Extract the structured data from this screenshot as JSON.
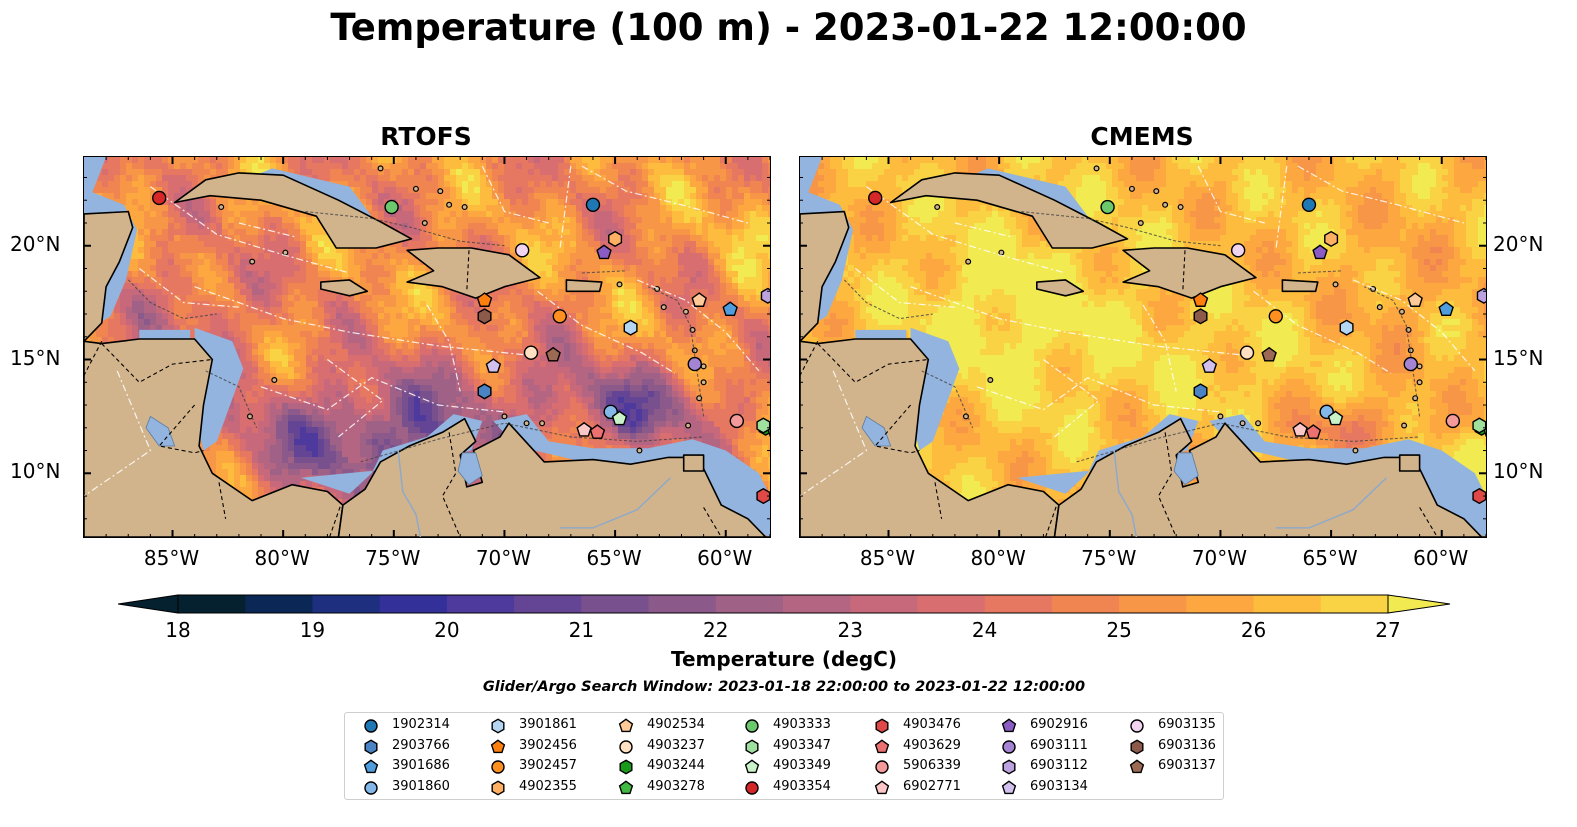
{
  "figure": {
    "title": "Temperature (100 m) - 2023-01-22 12:00:00",
    "colorbar_label": "Temperature (degC)",
    "search_window": "Glider/Argo Search Window: 2023-01-18 22:00:00 to 2023-01-22 12:00:00",
    "colorbar_ticks": [
      "18",
      "19",
      "20",
      "21",
      "22",
      "23",
      "24",
      "25",
      "26",
      "27"
    ],
    "colormap": [
      "#05202f",
      "#0b2756",
      "#1e2f7f",
      "#34309a",
      "#4e3a9c",
      "#644595",
      "#78508e",
      "#8c5a8a",
      "#a06187",
      "#b46582",
      "#c7697a",
      "#d86e6f",
      "#e67862",
      "#f08552",
      "#f79646",
      "#fca73f",
      "#fdbc3e",
      "#f9d344",
      "#f1ea51"
    ]
  },
  "panels": [
    {
      "id": "rtofs",
      "title": "RTOFS",
      "y_axis_side": "left",
      "lon_ticks": [
        "85°W",
        "80°W",
        "75°W",
        "70°W",
        "65°W",
        "60°W"
      ],
      "lat_ticks": [
        "20°N",
        "15°N",
        "10°N"
      ]
    },
    {
      "id": "cmems",
      "title": "CMEMS",
      "y_axis_side": "right",
      "lon_ticks": [
        "85°W",
        "80°W",
        "75°W",
        "70°W",
        "65°W",
        "60°W"
      ],
      "lat_ticks": [
        "20°N",
        "15°N",
        "10°N"
      ]
    }
  ],
  "colors": {
    "land": "#d2b48c",
    "shelf": "#93b4de",
    "deep_land": "#062231",
    "coast": "#000000"
  },
  "platforms": [
    {
      "id": "1902314",
      "marker": "circle",
      "color": "#1f77b4",
      "lon": -66.0,
      "lat": 21.8
    },
    {
      "id": "2903766",
      "marker": "hexagon",
      "color": "#4a84c4",
      "lon": -70.9,
      "lat": 13.6
    },
    {
      "id": "3901686",
      "marker": "pentagon",
      "color": "#4f9ddc",
      "lon": -59.8,
      "lat": 17.2
    },
    {
      "id": "3901860",
      "marker": "circle",
      "color": "#84b8e8",
      "lon": -65.2,
      "lat": 12.7
    },
    {
      "id": "3901861",
      "marker": "hexagon",
      "color": "#b4d6f3",
      "lon": -64.3,
      "lat": 16.4
    },
    {
      "id": "3902456",
      "marker": "pentagon",
      "color": "#ff7f0e",
      "lon": -70.9,
      "lat": 17.6
    },
    {
      "id": "3902457",
      "marker": "circle",
      "color": "#ff9020",
      "lon": -67.5,
      "lat": 16.9
    },
    {
      "id": "4902355",
      "marker": "hexagon",
      "color": "#ffb063",
      "lon": -65.0,
      "lat": 20.3
    },
    {
      "id": "4902534",
      "marker": "pentagon",
      "color": "#ffc998",
      "lon": -61.2,
      "lat": 17.6
    },
    {
      "id": "4903237",
      "marker": "circle",
      "color": "#ffe0c2",
      "lon": -68.8,
      "lat": 15.3
    },
    {
      "id": "4903244",
      "marker": "hexagon",
      "color": "#1a9a1a",
      "lon": -58.2,
      "lat": 12.0
    },
    {
      "id": "4903278",
      "marker": "pentagon",
      "color": "#41b841",
      "lon": -57.8,
      "lat": 11.9
    },
    {
      "id": "4903333",
      "marker": "circle",
      "color": "#6cc86c",
      "lon": -75.1,
      "lat": 21.7
    },
    {
      "id": "4903347",
      "marker": "hexagon",
      "color": "#9fe09f",
      "lon": -58.3,
      "lat": 12.1
    },
    {
      "id": "4903349",
      "marker": "pentagon",
      "color": "#c8f2c8",
      "lon": -64.8,
      "lat": 12.4
    },
    {
      "id": "4903354",
      "marker": "circle",
      "color": "#d62728",
      "lon": -85.6,
      "lat": 22.1
    },
    {
      "id": "4903476",
      "marker": "hexagon",
      "color": "#e04848",
      "lon": -58.3,
      "lat": 9.0
    },
    {
      "id": "4903629",
      "marker": "pentagon",
      "color": "#ec7070",
      "lon": -65.8,
      "lat": 11.8
    },
    {
      "id": "5906339",
      "marker": "circle",
      "color": "#f59a9a",
      "lon": -59.5,
      "lat": 12.3
    },
    {
      "id": "6902771",
      "marker": "pentagon",
      "color": "#fcc7c7",
      "lon": -66.4,
      "lat": 11.9
    },
    {
      "id": "6902916",
      "marker": "pentagon",
      "color": "#8a5cc4",
      "lon": -65.5,
      "lat": 19.7
    },
    {
      "id": "6903111",
      "marker": "circle",
      "color": "#a584d4",
      "lon": -61.4,
      "lat": 14.8
    },
    {
      "id": "6903112",
      "marker": "hexagon",
      "color": "#bda2e0",
      "lon": -58.1,
      "lat": 17.8
    },
    {
      "id": "6903134",
      "marker": "pentagon",
      "color": "#d2c0ee",
      "lon": -70.5,
      "lat": 14.7
    },
    {
      "id": "6903135",
      "marker": "circle",
      "color": "#f0d4f0",
      "lon": -69.2,
      "lat": 19.8
    },
    {
      "id": "6903136",
      "marker": "hexagon",
      "color": "#8c5a4a",
      "lon": -70.9,
      "lat": 16.9
    },
    {
      "id": "6903137",
      "marker": "pentagon",
      "color": "#9c6a54",
      "lon": -67.8,
      "lat": 15.2
    }
  ]
}
